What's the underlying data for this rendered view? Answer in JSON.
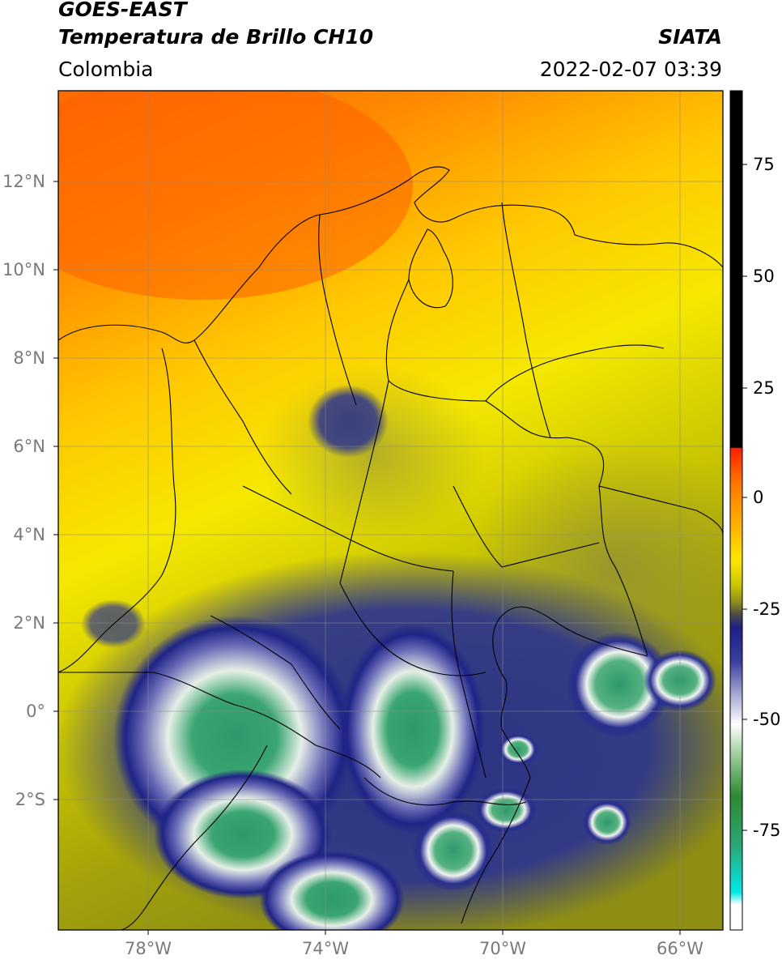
{
  "header": {
    "satellite": "GOES-EAST",
    "product": "Temperatura de Brillo CH10",
    "brand": "SIATA",
    "region": "Colombia",
    "datetime": "2022-02-07 03:39"
  },
  "map": {
    "lon_range": [
      -80,
      -65
    ],
    "lat_range": [
      -5,
      14
    ],
    "lat_ticks": [
      {
        "value": 12,
        "label": "12°N"
      },
      {
        "value": 10,
        "label": "10°N"
      },
      {
        "value": 8,
        "label": "8°N"
      },
      {
        "value": 6,
        "label": "6°N"
      },
      {
        "value": 4,
        "label": "4°N"
      },
      {
        "value": 2,
        "label": "2°N"
      },
      {
        "value": 0,
        "label": "0°"
      },
      {
        "value": -2,
        "label": "2°S"
      }
    ],
    "lon_ticks": [
      {
        "value": -78,
        "label": "78°W"
      },
      {
        "value": -74,
        "label": "74°W"
      },
      {
        "value": -70,
        "label": "70°W"
      },
      {
        "value": -66,
        "label": "66°W"
      }
    ]
  },
  "colorbar": {
    "range": [
      -95,
      90
    ],
    "ticks": [
      {
        "value": 75,
        "label": "75"
      },
      {
        "value": 50,
        "label": "50"
      },
      {
        "value": 25,
        "label": "25"
      },
      {
        "value": 0,
        "label": "0"
      },
      {
        "value": -25,
        "label": "-25"
      },
      {
        "value": -50,
        "label": "-50"
      },
      {
        "value": -75,
        "label": "-75"
      }
    ]
  }
}
